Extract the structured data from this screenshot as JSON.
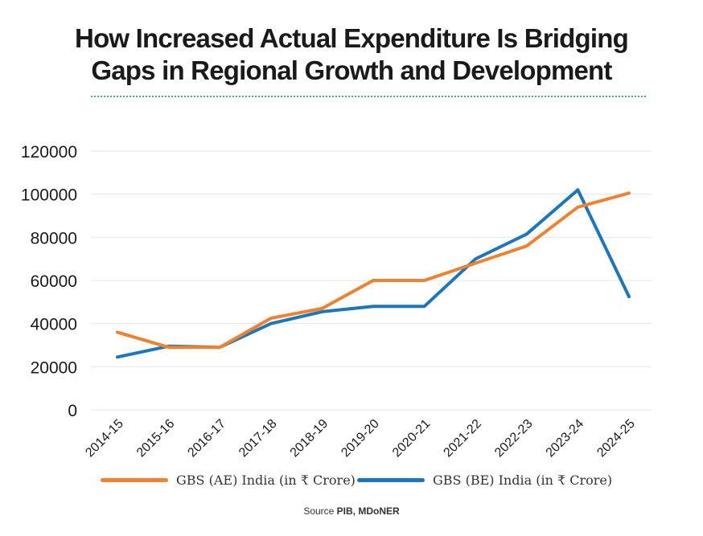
{
  "title": {
    "line1": "How Increased Actual Expenditure Is Bridging",
    "line2": "Gaps in Regional Growth and Development"
  },
  "source": {
    "prefix": "Source ",
    "name": "PIB, MDoNER"
  },
  "colors": {
    "ae": "#f0822f",
    "be": "#1b77bd",
    "grid": "#e6e6e6",
    "divider": "#4aa88a"
  },
  "chart_data": {
    "type": "line",
    "title": "How Increased Actual Expenditure Is Bridging Gaps in Regional Growth and Development",
    "xlabel": "",
    "ylabel": "",
    "categories": [
      "2014-15",
      "2015-16",
      "2016-17",
      "2017-18",
      "2018-19",
      "2019-20",
      "2020-21",
      "2021-22",
      "2022-23",
      "2023-24",
      "2024-25"
    ],
    "ylim": [
      0,
      120000
    ],
    "yticks": [
      "0",
      "20000",
      "40000",
      "60000",
      "80000",
      "100000",
      "120000"
    ],
    "grid": true,
    "legend_position": "bottom",
    "series": [
      {
        "name": "GBS (AE) India (in ₹ Crore)",
        "color": "#f0822f",
        "values": [
          36000,
          29000,
          29000,
          42500,
          47000,
          60000,
          60000,
          68000,
          76000,
          94000,
          100500
        ]
      },
      {
        "name": "GBS (BE) India (in ₹ Crore)",
        "color": "#1b77bd",
        "values": [
          24500,
          29500,
          29000,
          40000,
          45500,
          48000,
          48000,
          70000,
          81500,
          102000,
          52500
        ]
      }
    ]
  }
}
